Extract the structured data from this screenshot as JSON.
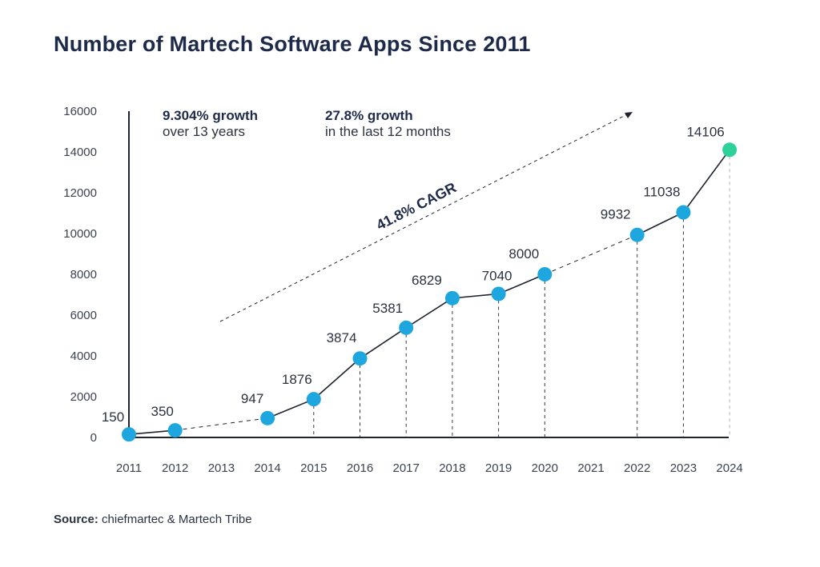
{
  "chart_data": {
    "type": "line",
    "title": "Number of Martech Software Apps Since 2011",
    "categories": [
      "2011",
      "2012",
      "2013",
      "2014",
      "2015",
      "2016",
      "2017",
      "2018",
      "2019",
      "2020",
      "2021",
      "2022",
      "2023",
      "2024"
    ],
    "points": [
      {
        "year": "2011",
        "value": 150
      },
      {
        "year": "2012",
        "value": 350
      },
      {
        "year": "2014",
        "value": 947
      },
      {
        "year": "2015",
        "value": 1876
      },
      {
        "year": "2016",
        "value": 3874
      },
      {
        "year": "2017",
        "value": 5381
      },
      {
        "year": "2018",
        "value": 6829
      },
      {
        "year": "2019",
        "value": 7040
      },
      {
        "year": "2020",
        "value": 8000
      },
      {
        "year": "2022",
        "value": 9932
      },
      {
        "year": "2023",
        "value": 11038
      },
      {
        "year": "2024",
        "value": 14106
      }
    ],
    "yticks": [
      0,
      2000,
      4000,
      6000,
      8000,
      10000,
      12000,
      14000,
      16000
    ],
    "ylim": [
      0,
      16000
    ],
    "xlabel": "",
    "ylabel": "",
    "annotations": {
      "growth_total_bold": "9.304% growth",
      "growth_total_sub": "over 13 years",
      "growth_recent_bold": "27.8% growth",
      "growth_recent_sub": "in the last 12 months",
      "cagr": "41.8% CAGR"
    },
    "colors": {
      "point": "#1ea7df",
      "highlight_point": "#2fd19b",
      "line": "#1f2430",
      "axis": "#1f2430"
    }
  },
  "source": {
    "label": "Source:",
    "text": "chiefmartec & Martech Tribe"
  }
}
